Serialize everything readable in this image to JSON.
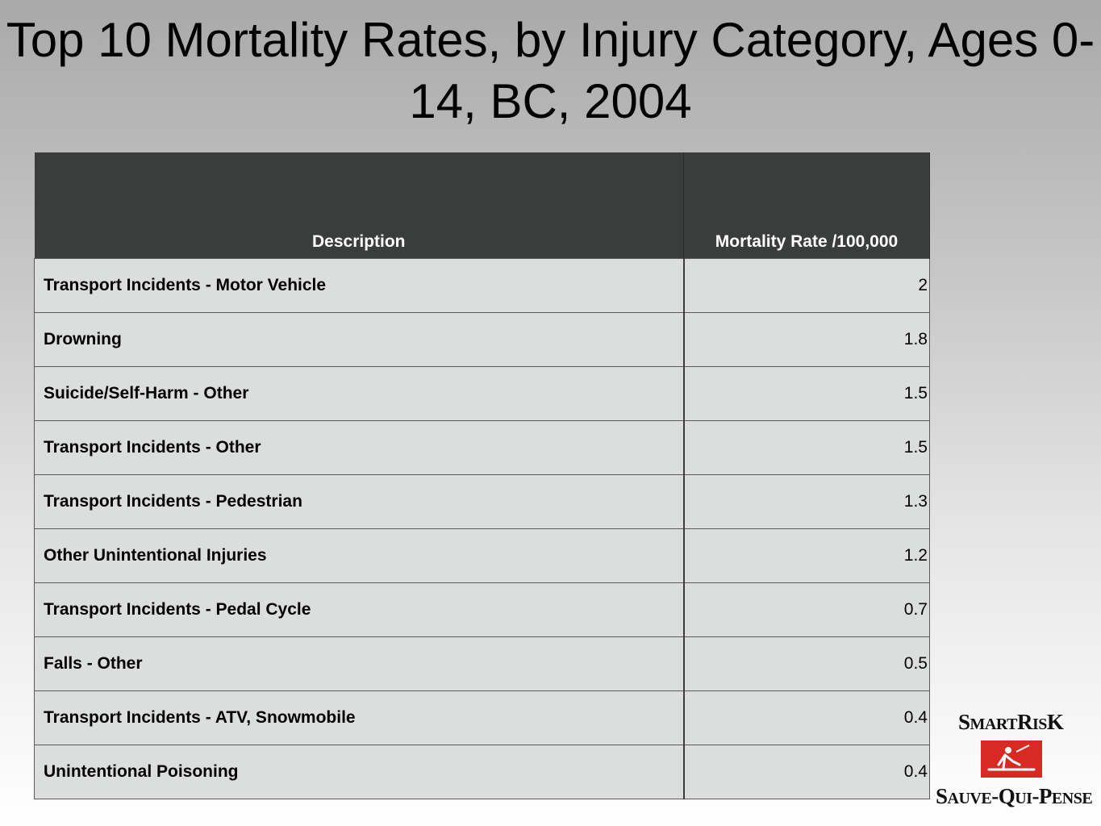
{
  "title": "Top 10 Mortality Rates, by Injury Category, Ages 0-14, BC, 2004",
  "table": {
    "headers": [
      "Description",
      "Mortality Rate /100,000"
    ],
    "rows": [
      {
        "description": "Transport Incidents - Motor Vehicle",
        "rate": "2"
      },
      {
        "description": "Drowning",
        "rate": "1.8"
      },
      {
        "description": "Suicide/Self-Harm - Other",
        "rate": "1.5"
      },
      {
        "description": "Transport Incidents - Other",
        "rate": "1.5"
      },
      {
        "description": "Transport Incidents - Pedestrian",
        "rate": "1.3"
      },
      {
        "description": "Other Unintentional Injuries",
        "rate": "1.2"
      },
      {
        "description": "Transport Incidents - Pedal Cycle",
        "rate": "0.7"
      },
      {
        "description": "Falls - Other",
        "rate": "0.5"
      },
      {
        "description": "Transport Incidents - ATV, Snowmobile",
        "rate": "0.4"
      },
      {
        "description": "Unintentional Poisoning",
        "rate": "0.4"
      }
    ]
  },
  "logo": {
    "top_text": "SMARTRISK",
    "bottom_text": "SAUVE-QUI-PENSE",
    "mark_color": "#d62a22"
  }
}
